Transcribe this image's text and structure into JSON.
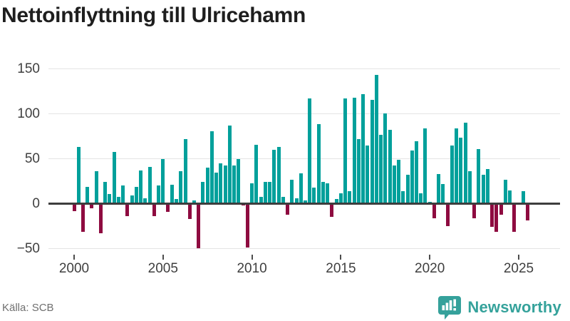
{
  "title": "Nettoinflyttning till Ulricehamn",
  "source": "Källa: SCB",
  "brand": {
    "name": "Newsworthy",
    "logo_icon": "newsworthy-badge-bar-chart-pin",
    "color": "#35a29b"
  },
  "chart_data": {
    "type": "bar",
    "title": "Nettoinflyttning till Ulricehamn",
    "frequency": "quarterly",
    "x_start": {
      "year": 2000,
      "quarter": 1
    },
    "x_end": {
      "year": 2025,
      "quarter": 3
    },
    "x_tick_labels": [
      "2000",
      "2005",
      "2010",
      "2015",
      "2020",
      "2025"
    ],
    "x_tick_quarter_positions": [
      0,
      20,
      40,
      60,
      80,
      100
    ],
    "y_ticks": [
      150,
      100,
      50,
      0,
      -50
    ],
    "y_tick_labels": [
      "150",
      "100",
      "50",
      "0",
      "−50"
    ],
    "ylim": [
      -58,
      158
    ],
    "grid": true,
    "legend": false,
    "xlabel": "",
    "ylabel": "",
    "colors": {
      "positive": "#00A09B",
      "negative": "#8E0B40"
    },
    "values": [
      -8,
      63,
      -31,
      19,
      -5,
      36,
      -33,
      24,
      11,
      58,
      8,
      20,
      -14,
      9,
      19,
      37,
      6,
      41,
      -14,
      20,
      50,
      -9,
      21,
      5,
      36,
      72,
      -17,
      4,
      -50,
      24,
      40,
      81,
      35,
      45,
      43,
      87,
      43,
      50,
      -2,
      -49,
      23,
      66,
      8,
      24,
      24,
      60,
      63,
      8,
      -12,
      27,
      6,
      34,
      4,
      117,
      18,
      89,
      24,
      23,
      -15,
      5,
      12,
      117,
      14,
      118,
      72,
      122,
      65,
      116,
      144,
      77,
      101,
      82,
      43,
      49,
      14,
      32,
      59,
      70,
      12,
      84,
      2,
      -16,
      33,
      22,
      -25,
      65,
      84,
      74,
      90,
      36,
      -16,
      61,
      32,
      39,
      -26,
      -31,
      -12,
      27,
      15,
      -31,
      0,
      14,
      -19
    ]
  }
}
